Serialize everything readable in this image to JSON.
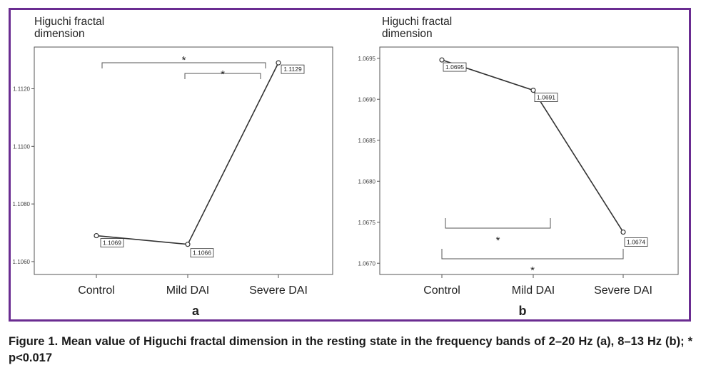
{
  "caption": "Figure 1. Mean value of Higuchi fractal dimension in the resting state in the frequency bands of 2–20 Hz (a), 8–13 Hz (b); * p<0.017",
  "colors": {
    "frame": "#6a2c91",
    "line": "#333333",
    "axis": "#555555"
  },
  "chart_data": [
    {
      "type": "line",
      "panel_label": "a",
      "ylabel": "Higuchi fractal dimension",
      "categories": [
        "Control",
        "Mild DAI",
        "Severe DAI"
      ],
      "values": [
        1.1069,
        1.1066,
        1.1129
      ],
      "data_labels": [
        "1.1069",
        "1.1066",
        "1.1129"
      ],
      "ylim": [
        1.1058,
        1.1132
      ],
      "yticks": [
        "1.1060",
        "1.1080",
        "1.1100",
        "1.1120"
      ],
      "yticks_values": [
        1.106,
        1.108,
        1.11,
        1.112
      ],
      "grid": false,
      "significance": [
        {
          "from": 0,
          "to": 2,
          "label": "*",
          "position": "above"
        },
        {
          "from": 1,
          "to": 2,
          "label": "*",
          "position": "above"
        }
      ]
    },
    {
      "type": "line",
      "panel_label": "b",
      "ylabel": "Higuchi fractal dimension",
      "categories": [
        "Control",
        "Mild DAI",
        "Severe DAI"
      ],
      "values": [
        1.06948,
        1.06911,
        1.06738
      ],
      "data_labels": [
        "1.0695",
        "1.0691",
        "1.0674"
      ],
      "ylim": [
        1.06695,
        1.06955
      ],
      "yticks": [
        "1.0670",
        "1.0675",
        "1.0680",
        "1.0685",
        "1.0690",
        "1.0695"
      ],
      "yticks_values": [
        1.067,
        1.0675,
        1.068,
        1.0685,
        1.069,
        1.0695
      ],
      "grid": false,
      "significance": [
        {
          "from": 0,
          "to": 1,
          "label": "*",
          "position": "below"
        },
        {
          "from": 0,
          "to": 2,
          "label": "*",
          "position": "below"
        }
      ]
    }
  ]
}
